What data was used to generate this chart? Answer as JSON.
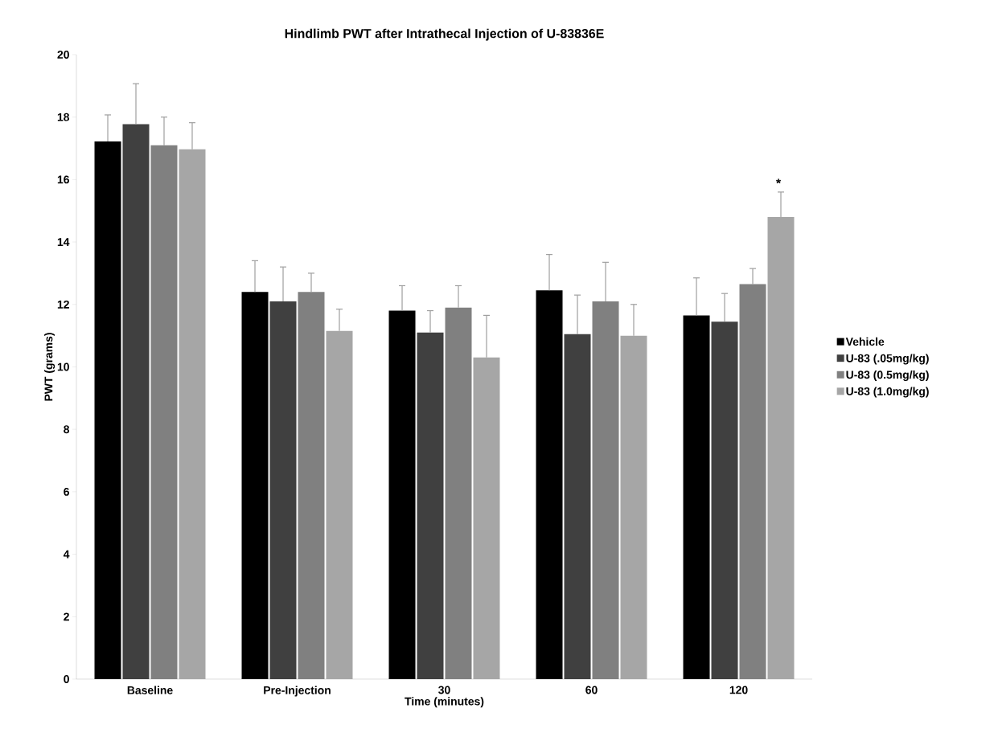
{
  "chart_data": {
    "type": "bar",
    "title": "Hindlimb PWT after Intrathecal Injection of U-83836E",
    "xlabel": "Time (minutes)",
    "ylabel": "PWT (grams)",
    "categories": [
      "Baseline",
      "Pre-Injection",
      "30",
      "60",
      "120"
    ],
    "series": [
      {
        "name": "Vehicle",
        "color": "#000000",
        "values": [
          17.22,
          12.4,
          11.8,
          12.45,
          11.65
        ],
        "errors": [
          [
            17.22,
            18.07
          ],
          [
            12.4,
            13.4
          ],
          [
            11.8,
            12.6
          ],
          [
            12.45,
            13.6
          ],
          [
            11.65,
            12.85
          ]
        ]
      },
      {
        "name": "U-83 (.05mg/kg)",
        "color": "#404040",
        "values": [
          17.77,
          12.1,
          11.1,
          11.05,
          11.45
        ],
        "errors": [
          [
            17.77,
            19.07
          ],
          [
            12.1,
            13.2
          ],
          [
            11.1,
            11.8
          ],
          [
            11.05,
            12.3
          ],
          [
            11.45,
            12.35
          ]
        ]
      },
      {
        "name": "U-83 (0.5mg/kg)",
        "color": "#808080",
        "values": [
          17.1,
          12.4,
          11.9,
          12.1,
          12.65
        ],
        "errors": [
          [
            17.1,
            18.0
          ],
          [
            12.4,
            13.0
          ],
          [
            11.9,
            12.6
          ],
          [
            12.1,
            13.35
          ],
          [
            12.65,
            13.15
          ]
        ]
      },
      {
        "name": "U-83 (1.0mg/kg)",
        "color": "#a6a6a6",
        "values": [
          16.97,
          11.15,
          10.3,
          11.0,
          14.8
        ],
        "errors": [
          [
            16.97,
            17.82
          ],
          [
            11.15,
            11.85
          ],
          [
            10.3,
            11.65
          ],
          [
            11.0,
            12.0
          ],
          [
            14.8,
            15.6
          ]
        ]
      }
    ],
    "ylim": [
      0,
      20
    ],
    "yticks": [
      0,
      2,
      4,
      6,
      8,
      10,
      12,
      14,
      16,
      18,
      20
    ],
    "grid": false,
    "legend": "right",
    "annotations": [
      "*"
    ]
  }
}
